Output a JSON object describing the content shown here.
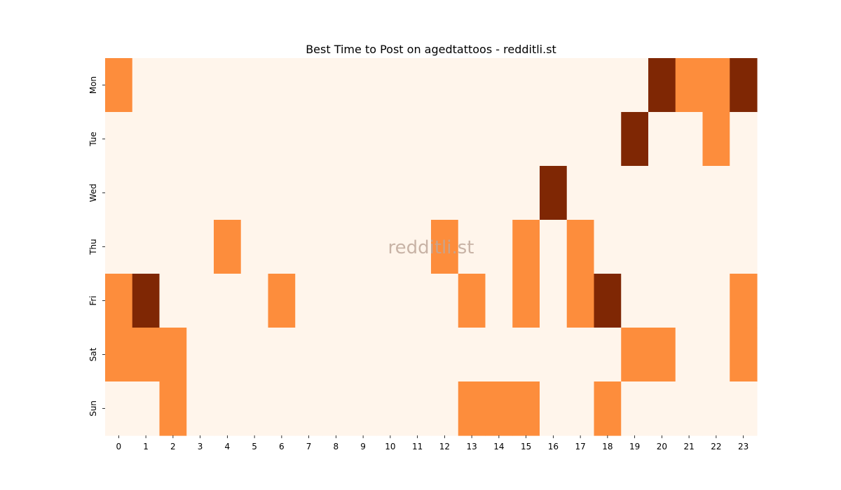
{
  "chart_data": {
    "type": "heatmap",
    "title": "Best Time to Post on agedtattoos - redditli.st",
    "watermark": "redditli.st",
    "x": [
      "0",
      "1",
      "2",
      "3",
      "4",
      "5",
      "6",
      "7",
      "8",
      "9",
      "10",
      "11",
      "12",
      "13",
      "14",
      "15",
      "16",
      "17",
      "18",
      "19",
      "20",
      "21",
      "22",
      "23"
    ],
    "y": [
      "Mon",
      "Tue",
      "Wed",
      "Thu",
      "Fri",
      "Sat",
      "Sun"
    ],
    "values": [
      [
        1,
        0,
        0,
        0,
        0,
        0,
        0,
        0,
        0,
        0,
        0,
        0,
        0,
        0,
        0,
        0,
        0,
        0,
        0,
        0,
        2,
        1,
        1,
        2
      ],
      [
        0,
        0,
        0,
        0,
        0,
        0,
        0,
        0,
        0,
        0,
        0,
        0,
        0,
        0,
        0,
        0,
        0,
        0,
        0,
        2,
        0,
        0,
        1,
        0
      ],
      [
        0,
        0,
        0,
        0,
        0,
        0,
        0,
        0,
        0,
        0,
        0,
        0,
        0,
        0,
        0,
        0,
        2,
        0,
        0,
        0,
        0,
        0,
        0,
        0
      ],
      [
        0,
        0,
        0,
        0,
        1,
        0,
        0,
        0,
        0,
        0,
        0,
        0,
        1,
        0,
        0,
        1,
        0,
        1,
        0,
        0,
        0,
        0,
        0,
        0
      ],
      [
        1,
        2,
        0,
        0,
        0,
        0,
        1,
        0,
        0,
        0,
        0,
        0,
        0,
        1,
        0,
        1,
        0,
        1,
        2,
        0,
        0,
        0,
        0,
        1
      ],
      [
        1,
        1,
        1,
        0,
        0,
        0,
        0,
        0,
        0,
        0,
        0,
        0,
        0,
        0,
        0,
        0,
        0,
        0,
        0,
        1,
        1,
        0,
        0,
        1
      ],
      [
        0,
        0,
        1,
        0,
        0,
        0,
        0,
        0,
        0,
        0,
        0,
        0,
        0,
        1,
        1,
        1,
        0,
        0,
        1,
        0,
        0,
        0,
        0,
        0
      ]
    ],
    "colorscale": [
      "#fff5eb",
      "#fd8d3c",
      "#7f2704"
    ],
    "grid": false,
    "legend": "none"
  }
}
